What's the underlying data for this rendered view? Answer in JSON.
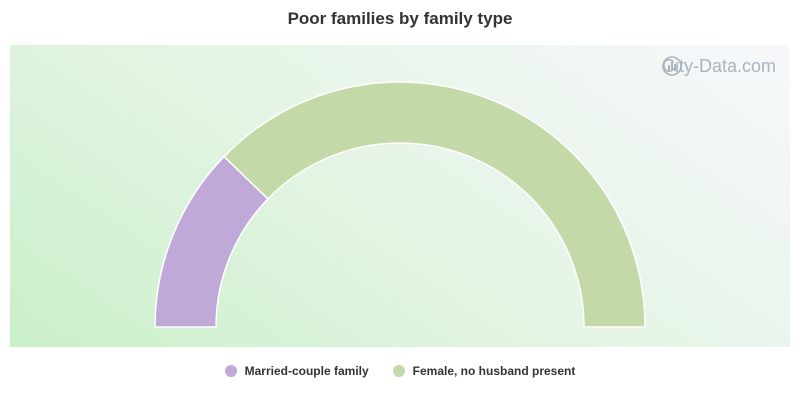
{
  "chart_data": {
    "type": "pie",
    "title": "Poor families by family type",
    "categories": [
      "Married-couple family",
      "Female, no husband present"
    ],
    "values": [
      24.5,
      75.5
    ],
    "colors": [
      "#c0a8d8",
      "#c4d9a8"
    ],
    "legend_position": "bottom",
    "style": "half-donut"
  },
  "watermark": {
    "text": "City-Data.com",
    "icon": "city-data-logo-icon"
  }
}
